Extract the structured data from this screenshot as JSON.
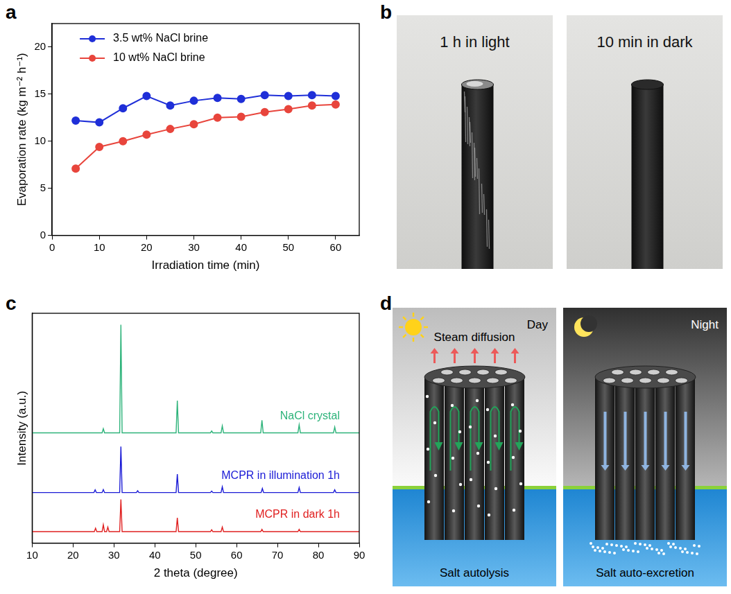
{
  "chart_data": [
    {
      "panel_label": "a",
      "type": "line",
      "x_label": "Irradiation time (min)",
      "y_label": "Evaporation rate (kg m⁻² h⁻¹)",
      "xlim": [
        0,
        65
      ],
      "xticks": [
        0,
        10,
        20,
        30,
        40,
        50,
        60
      ],
      "ylim": [
        0,
        22.5
      ],
      "yticks": [
        0,
        5,
        10,
        15,
        20
      ],
      "grid": false,
      "legend": "upper left",
      "x": [
        5,
        10,
        15,
        20,
        25,
        30,
        35,
        40,
        45,
        50,
        55,
        60
      ],
      "series": [
        {
          "name": "3.5 wt% NaCl brine",
          "color": "#1f2fd8",
          "marker": "circle",
          "values": [
            12.2,
            12.0,
            13.5,
            14.8,
            13.8,
            14.3,
            14.6,
            14.5,
            14.9,
            14.8,
            14.9,
            14.8
          ]
        },
        {
          "name": "10 wt% NaCl brine",
          "color": "#e8453c",
          "marker": "circle",
          "values": [
            7.1,
            9.4,
            10.0,
            10.7,
            11.3,
            11.8,
            12.5,
            12.6,
            13.1,
            13.4,
            13.8,
            13.9
          ]
        }
      ]
    },
    {
      "panel_label": "c",
      "type": "line",
      "x_label": "2 theta (degree)",
      "y_label": "Intensity (a.u.)",
      "xlim": [
        10,
        90
      ],
      "xticks": [
        10,
        20,
        30,
        40,
        50,
        60,
        70,
        80,
        90
      ],
      "ylim": [
        0,
        100
      ],
      "grid": false,
      "tick_labels": "x",
      "series": [
        {
          "name": "NaCl crystal",
          "color": "#2db37a",
          "x": [
            10,
            27.1,
            27.4,
            27.7,
            31.4,
            31.7,
            32.0,
            45.2,
            45.5,
            45.8,
            53.6,
            53.9,
            54.2,
            56.2,
            56.5,
            56.8,
            65.9,
            66.2,
            66.5,
            75.0,
            75.3,
            75.6,
            83.7,
            84.0,
            84.3,
            90
          ],
          "values": [
            48,
            48,
            49.8,
            48,
            48,
            95,
            48,
            48,
            62,
            48,
            48,
            48.8,
            48,
            48,
            51,
            48,
            48,
            53.5,
            48,
            48,
            51.5,
            48,
            48,
            50.5,
            48,
            48
          ]
        },
        {
          "name": "MCPR in illumination 1h",
          "color": "#1a1ad6",
          "x": [
            10,
            25.1,
            25.4,
            25.7,
            27.1,
            27.4,
            27.7,
            31.4,
            31.7,
            32.0,
            35.5,
            35.8,
            36.1,
            45.2,
            45.5,
            45.8,
            53.6,
            53.9,
            54.2,
            56.2,
            56.5,
            56.8,
            66.0,
            66.3,
            66.6,
            75.0,
            75.3,
            75.6,
            83.7,
            84.0,
            84.3,
            90
          ],
          "values": [
            22,
            22,
            23.2,
            22,
            22,
            23.3,
            22,
            22,
            42,
            22,
            22,
            22.8,
            22,
            22,
            30,
            22,
            22,
            22.6,
            22,
            22,
            24.5,
            22,
            22,
            23.8,
            22,
            22,
            24.2,
            22,
            22,
            23.2,
            22,
            22
          ]
        },
        {
          "name": "MCPR in dark 1h",
          "color": "#e02020",
          "x": [
            10,
            25.2,
            25.5,
            25.8,
            27.1,
            27.4,
            27.7,
            28.2,
            28.5,
            28.8,
            31.4,
            31.7,
            32.0,
            45.2,
            45.5,
            45.8,
            53.6,
            53.9,
            54.2,
            56.2,
            56.5,
            56.8,
            65.9,
            66.2,
            66.5,
            75.0,
            75.3,
            75.6,
            90
          ],
          "values": [
            5,
            5,
            6.5,
            5,
            5,
            8,
            5,
            5,
            7,
            5,
            5,
            19,
            5,
            5,
            11,
            5,
            5,
            5.8,
            5,
            5,
            7,
            5,
            5,
            6,
            5,
            5,
            6,
            5,
            5
          ]
        }
      ]
    }
  ],
  "photos": {
    "panel_label": "b",
    "images": [
      {
        "caption": "1 h in light"
      },
      {
        "caption": "10 min in dark"
      }
    ]
  },
  "diagram": {
    "panel_label": "d",
    "scenes": [
      {
        "label": "Day",
        "top_text": "Steam diffusion",
        "bottom_text": "Salt autolysis"
      },
      {
        "label": "Night",
        "bottom_text": "Salt auto-excretion"
      }
    ]
  }
}
